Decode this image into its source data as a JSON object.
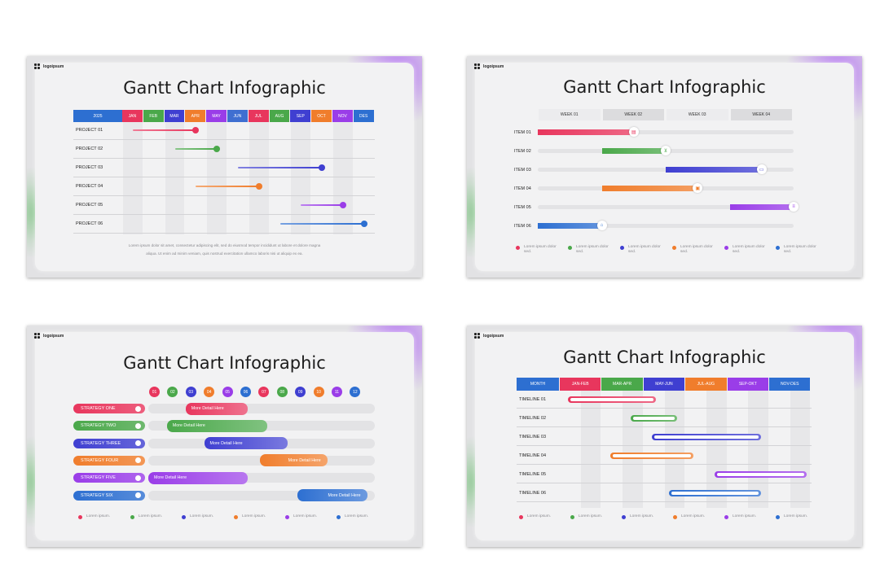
{
  "brand": {
    "logo_text": "logoipsum"
  },
  "title": "Gantt Chart Infographic",
  "colors": [
    "#e8365d",
    "#4aa84a",
    "#3f3fd1",
    "#f07d2c",
    "#9a3de8",
    "#2d6fd1"
  ],
  "chart_data": [
    {
      "type": "gantt",
      "title": "Gantt Chart Infographic",
      "header_label": "2025",
      "categories": [
        "JAN",
        "FEB",
        "MAR",
        "APR",
        "MAY",
        "JUN",
        "JUL",
        "AUG",
        "SEP",
        "OCT",
        "NOV",
        "DES"
      ],
      "rows": [
        {
          "label": "PROJECT 01",
          "start": 0.5,
          "end": 3.5
        },
        {
          "label": "PROJECT 02",
          "start": 2.5,
          "end": 4.5
        },
        {
          "label": "PROJECT 03",
          "start": 5.5,
          "end": 9.5
        },
        {
          "label": "PROJECT 04",
          "start": 3.5,
          "end": 6.5
        },
        {
          "label": "PROJECT 05",
          "start": 8.5,
          "end": 10.5
        },
        {
          "label": "PROJECT 06",
          "start": 7.5,
          "end": 11.5
        }
      ],
      "description": [
        "Lorem ipsum dolor sit amet, consectetur adipiscing elit, sed do eiusmod tempor incididunt ut labore et dolore magna",
        "aliqua. Ut enim ad minim veniam, quis nostrud exercitation ullamco laboris nisi ut aliquip ex ea."
      ]
    },
    {
      "type": "gantt",
      "title": "Gantt Chart Infographic",
      "categories": [
        "WEEK 01",
        "WEEK 02",
        "WEEK 03",
        "WEEK 04"
      ],
      "rows": [
        {
          "label": "ITEM 01",
          "start": 0,
          "end": 1.5,
          "icon": "calendar-icon",
          "glyph": "▤"
        },
        {
          "label": "ITEM 02",
          "start": 1,
          "end": 2.0,
          "icon": "cart-icon",
          "glyph": "⊻"
        },
        {
          "label": "ITEM 03",
          "start": 2,
          "end": 3.5,
          "icon": "money-icon",
          "glyph": "▭"
        },
        {
          "label": "ITEM 04",
          "start": 1,
          "end": 2.5,
          "icon": "briefcase-icon",
          "glyph": "▣"
        },
        {
          "label": "ITEM 05",
          "start": 3,
          "end": 4.0,
          "icon": "database-icon",
          "glyph": "≡"
        },
        {
          "label": "ITEM 06",
          "start": 0,
          "end": 1.0,
          "icon": "bank-icon",
          "glyph": "⌂"
        }
      ],
      "legend": [
        "Lorem ipsum dolor sed.",
        "Lorem ipsum dolor sed.",
        "Lorem ipsum dolor sed.",
        "Lorem ipsum dolor sed.",
        "Lorem ipsum dolor sed.",
        "Lorem ipsum dolor sed."
      ]
    },
    {
      "type": "gantt",
      "title": "Gantt Chart Infographic",
      "categories": [
        "01",
        "02",
        "03",
        "04",
        "05",
        "06",
        "07",
        "08",
        "09",
        "10",
        "11",
        "12"
      ],
      "rows": [
        {
          "label": "STRATEGY ONE",
          "start": 2,
          "end": 5,
          "bar_label": "More Detail Here"
        },
        {
          "label": "STRATEGY TWO",
          "start": 1,
          "end": 6,
          "bar_label": "More Detail Here"
        },
        {
          "label": "STRATEGY THREE",
          "start": 3,
          "end": 7,
          "bar_label": "More Detail Here"
        },
        {
          "label": "STRATEGY FOUR",
          "start": 6,
          "end": 9,
          "bar_label": "More Detail Here"
        },
        {
          "label": "STRATEGY FIVE",
          "start": 0,
          "end": 5,
          "bar_label": "More Detail Here"
        },
        {
          "label": "STRATEGY SIX",
          "start": 8,
          "end": 11,
          "bar_label": "More Detail Here"
        }
      ],
      "legend": [
        "Lorem ipsum.",
        "Lorem ipsum.",
        "Lorem ipsum.",
        "Lorem ipsum.",
        "Lorem ipsum.",
        "Lorem ipsum."
      ]
    },
    {
      "type": "gantt",
      "title": "Gantt Chart Infographic",
      "header_label": "MONTH",
      "categories": [
        "JAN-FEB",
        "MAR-APR",
        "MAY-JUN",
        "JUL-AUG",
        "SEP-OKT",
        "NOV-DES"
      ],
      "rows": [
        {
          "label": "TIMELINE 01",
          "start": 0.2,
          "end": 2.3
        },
        {
          "label": "TIMELINE 02",
          "start": 1.7,
          "end": 2.8
        },
        {
          "label": "TIMELINE 03",
          "start": 2.2,
          "end": 4.8
        },
        {
          "label": "TIMELINE 04",
          "start": 1.2,
          "end": 3.2
        },
        {
          "label": "TIMELINE 05",
          "start": 3.7,
          "end": 5.9
        },
        {
          "label": "TIMELINE 06",
          "start": 2.6,
          "end": 4.8
        }
      ],
      "legend": [
        "Lorem ipsum.",
        "Lorem ipsum.",
        "Lorem ipsum.",
        "Lorem ipsum.",
        "Lorem ipsum.",
        "Lorem ipsum."
      ]
    }
  ]
}
